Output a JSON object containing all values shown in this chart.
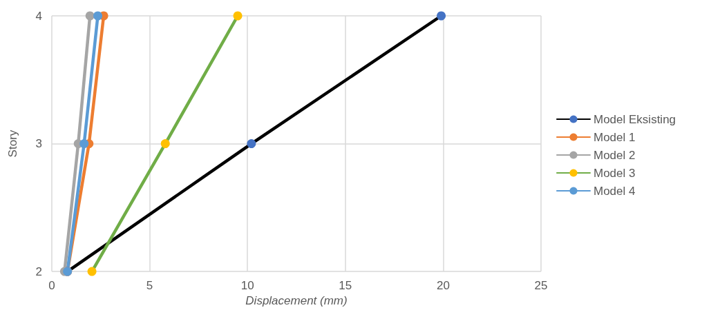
{
  "chart_data": {
    "type": "line",
    "xlabel": "Displacement (mm)",
    "ylabel": "Story",
    "xlim": [
      0,
      25
    ],
    "xticks": [
      0,
      5,
      10,
      15,
      20,
      25
    ],
    "ylim": [
      2,
      4
    ],
    "yticks": [
      2,
      3,
      4
    ],
    "grid": true,
    "legend": "right",
    "marker": "circle",
    "line_style": "solid",
    "series": [
      {
        "name": "Model Eksisting",
        "color": "#000000",
        "colors": [
          "#4472c4",
          "#4472c4",
          "#4472c4"
        ],
        "x": [
          0.8,
          10.2,
          19.9
        ],
        "values": [
          2,
          3,
          4
        ]
      },
      {
        "name": "Model 1",
        "color": "#ed7d31",
        "x": [
          0.8,
          1.9,
          2.65
        ],
        "values": [
          2,
          3,
          4
        ]
      },
      {
        "name": "Model 2",
        "color": "#a5a5a5",
        "x": [
          0.65,
          1.35,
          1.95
        ],
        "values": [
          2,
          3,
          4
        ]
      },
      {
        "name": "Model 3",
        "color": "#70ad47",
        "colors": [
          "#ffc000",
          "#ffc000",
          "#ffc000"
        ],
        "x": [
          2.05,
          5.8,
          9.5
        ],
        "values": [
          2,
          3,
          4
        ]
      },
      {
        "name": "Model 4",
        "color": "#5b9bd5",
        "x": [
          0.8,
          1.65,
          2.35
        ],
        "values": [
          2,
          3,
          4
        ]
      }
    ]
  }
}
